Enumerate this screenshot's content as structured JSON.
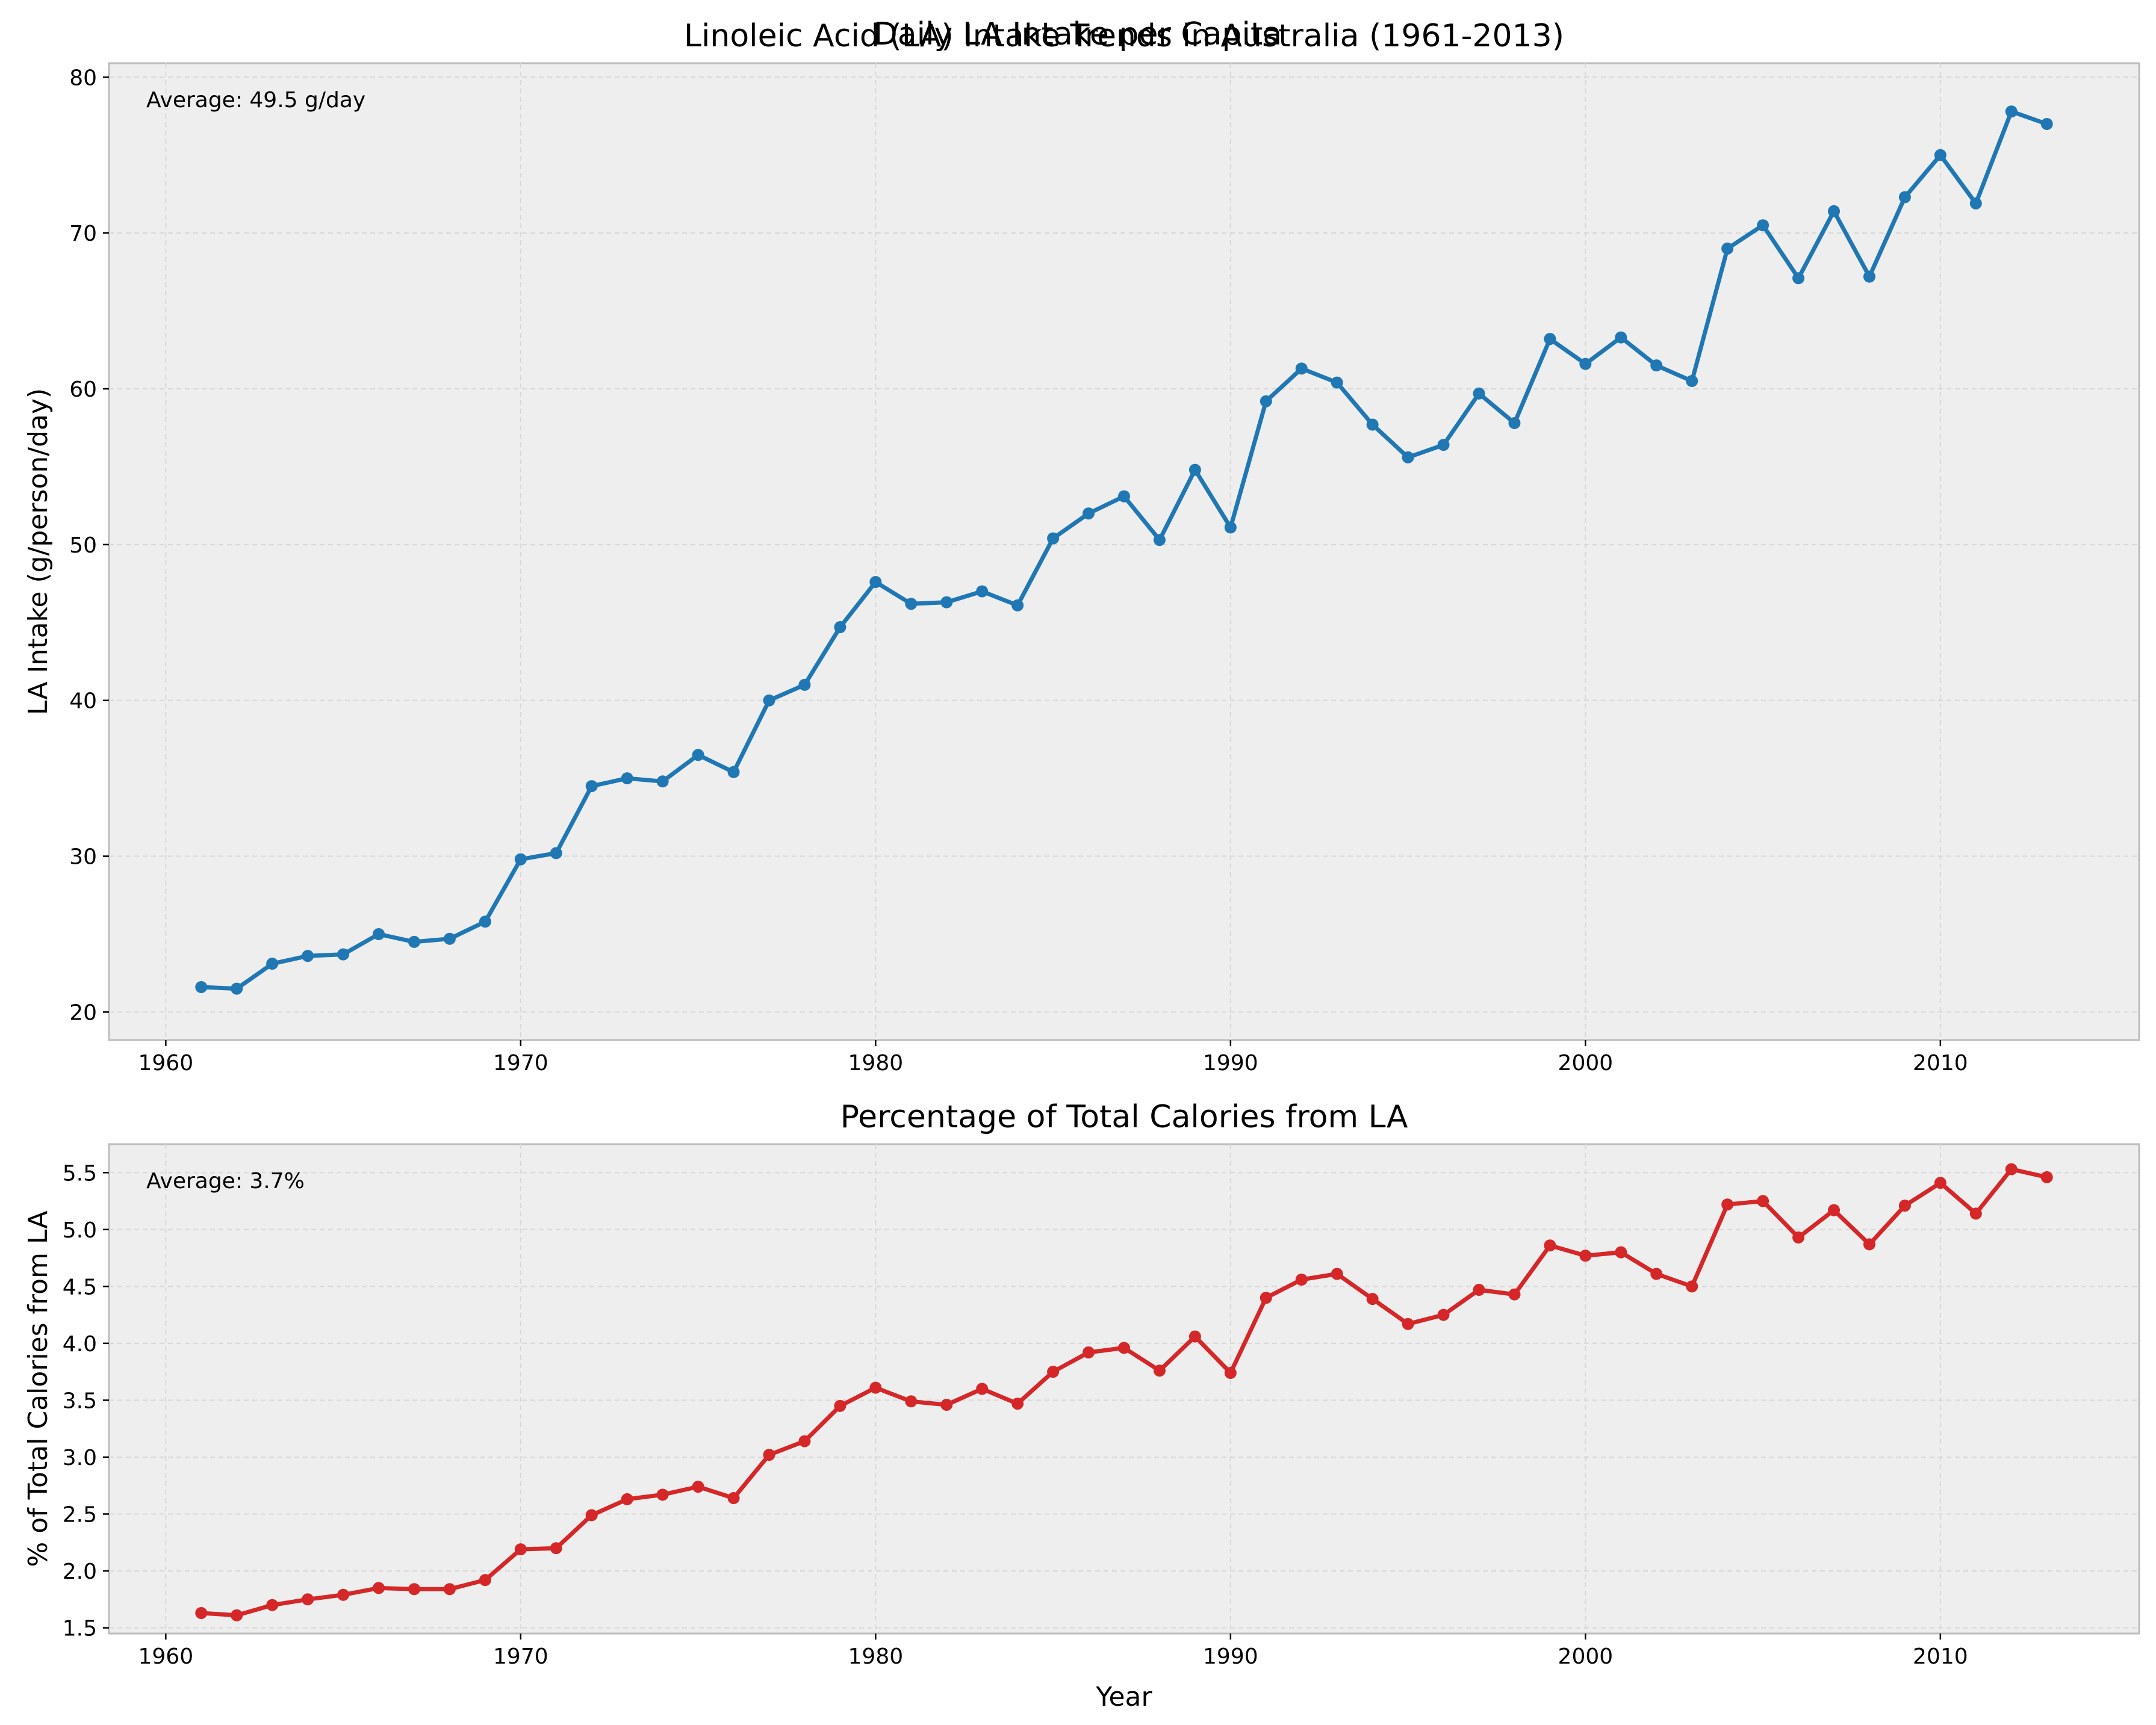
{
  "figure": {
    "suptitle": "Daily LA Intake per Capita",
    "colors": {
      "series1": "#1f77b4",
      "series2": "#d62728"
    }
  },
  "chart_data": [
    {
      "type": "line",
      "title": "Linoleic Acid (LA) Intake Trends in Australia (1961-2013)",
      "xlabel": "",
      "ylabel": "LA Intake (g/person/day)",
      "annotation": "Average: 49.5 g/day",
      "xlim": [
        1958.4,
        2015.6
      ],
      "ylim": [
        18.2,
        80.9
      ],
      "xticks": [
        1960,
        1970,
        1980,
        1990,
        2000,
        2010
      ],
      "yticks": [
        20,
        30,
        40,
        50,
        60,
        70,
        80
      ],
      "grid": true,
      "x": [
        1961,
        1962,
        1963,
        1964,
        1965,
        1966,
        1967,
        1968,
        1969,
        1970,
        1971,
        1972,
        1973,
        1974,
        1975,
        1976,
        1977,
        1978,
        1979,
        1980,
        1981,
        1982,
        1983,
        1984,
        1985,
        1986,
        1987,
        1988,
        1989,
        1990,
        1991,
        1992,
        1993,
        1994,
        1995,
        1996,
        1997,
        1998,
        1999,
        2000,
        2001,
        2002,
        2003,
        2004,
        2005,
        2006,
        2007,
        2008,
        2009,
        2010,
        2011,
        2012,
        2013
      ],
      "series": [
        {
          "values": [
            21.6,
            21.5,
            23.1,
            23.6,
            23.7,
            25.0,
            24.5,
            24.7,
            25.8,
            29.8,
            30.2,
            34.5,
            35.0,
            34.8,
            36.5,
            35.4,
            40.0,
            41.0,
            44.7,
            47.6,
            46.2,
            46.3,
            47.0,
            46.1,
            50.4,
            52.0,
            53.1,
            50.3,
            54.8,
            51.1,
            59.2,
            61.3,
            60.4,
            57.7,
            55.6,
            56.4,
            59.7,
            57.8,
            63.2,
            61.6,
            63.3,
            61.5,
            60.5,
            69.0,
            70.5,
            67.1,
            71.4,
            67.2,
            72.3,
            75.0,
            71.9,
            77.8,
            77.0
          ]
        }
      ]
    },
    {
      "type": "line",
      "title": "Percentage of Total Calories from LA",
      "xlabel": "Year",
      "ylabel": "% of Total Calories from LA",
      "annotation": "Average: 3.7%",
      "xlim": [
        1958.4,
        2015.6
      ],
      "ylim": [
        1.45,
        5.75
      ],
      "xticks": [
        1960,
        1970,
        1980,
        1990,
        2000,
        2010
      ],
      "yticks": [
        1.5,
        2.0,
        2.5,
        3.0,
        3.5,
        4.0,
        4.5,
        5.0,
        5.5
      ],
      "grid": true,
      "x": [
        1961,
        1962,
        1963,
        1964,
        1965,
        1966,
        1967,
        1968,
        1969,
        1970,
        1971,
        1972,
        1973,
        1974,
        1975,
        1976,
        1977,
        1978,
        1979,
        1980,
        1981,
        1982,
        1983,
        1984,
        1985,
        1986,
        1987,
        1988,
        1989,
        1990,
        1991,
        1992,
        1993,
        1994,
        1995,
        1996,
        1997,
        1998,
        1999,
        2000,
        2001,
        2002,
        2003,
        2004,
        2005,
        2006,
        2007,
        2008,
        2009,
        2010,
        2011,
        2012,
        2013
      ],
      "series": [
        {
          "values": [
            1.63,
            1.61,
            1.7,
            1.75,
            1.79,
            1.85,
            1.84,
            1.84,
            1.92,
            2.19,
            2.2,
            2.49,
            2.63,
            2.67,
            2.74,
            2.64,
            3.02,
            3.14,
            3.45,
            3.61,
            3.49,
            3.46,
            3.6,
            3.47,
            3.75,
            3.92,
            3.96,
            3.76,
            4.06,
            3.74,
            4.4,
            4.56,
            4.61,
            4.39,
            4.17,
            4.25,
            4.47,
            4.43,
            4.86,
            4.77,
            4.8,
            4.61,
            4.5,
            5.22,
            5.25,
            4.93,
            5.17,
            4.87,
            5.21,
            5.41,
            5.14,
            5.53,
            5.46
          ]
        }
      ]
    }
  ]
}
